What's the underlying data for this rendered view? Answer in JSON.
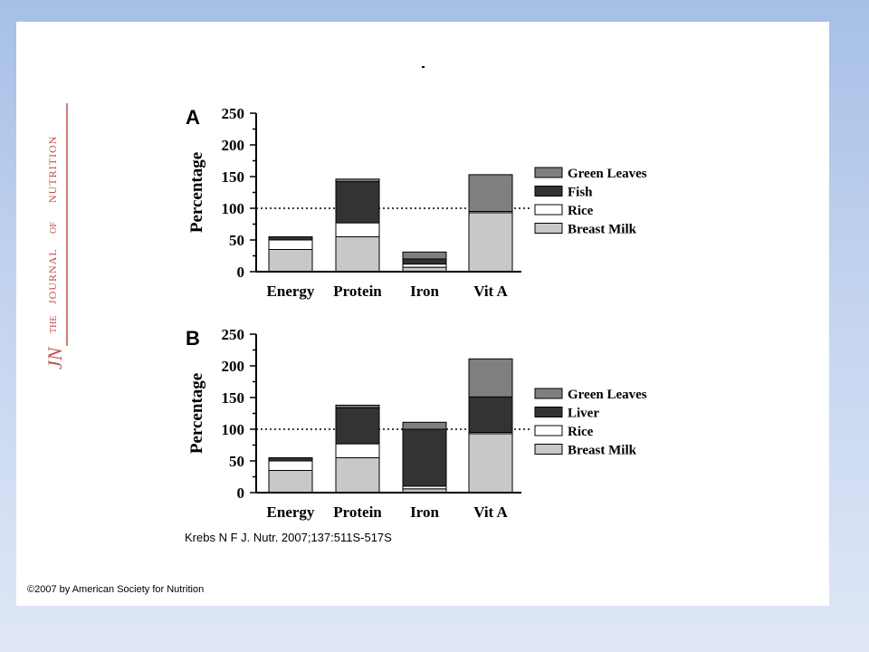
{
  "journal": {
    "abbrev": "JN",
    "the": "THE",
    "title_word1": "JOURNAL",
    "of": "OF",
    "title_word2": "NUTRITION"
  },
  "stray_mark": "-",
  "citation": "Krebs N F J. Nutr. 2007;137:511S-517S",
  "copyright": "©2007 by American Society for Nutrition",
  "colors": {
    "green_leaves": "#7f7f7f",
    "fish_liver": "#333333",
    "rice": "#ffffff",
    "breast_milk": "#c8c8c8",
    "slide_background": "#a6bfe6"
  },
  "chart_data": [
    {
      "type": "bar",
      "stacked": true,
      "panel_label": "A",
      "ylabel": "Percentage",
      "ylim": [
        0,
        250
      ],
      "yticks": [
        0,
        50,
        100,
        150,
        200,
        250
      ],
      "reference_line": 100,
      "categories": [
        "Energy",
        "Protein",
        "Iron",
        "Vit A"
      ],
      "series": [
        {
          "name": "Breast Milk",
          "color": "#c8c8c8",
          "values": [
            35,
            55,
            7,
            93
          ]
        },
        {
          "name": "Rice",
          "color": "#ffffff",
          "values": [
            15,
            22,
            5,
            2
          ]
        },
        {
          "name": "Fish",
          "color": "#333333",
          "values": [
            5,
            65,
            8,
            0
          ]
        },
        {
          "name": "Green Leaves",
          "color": "#7f7f7f",
          "values": [
            0,
            4,
            11,
            58
          ]
        }
      ],
      "legend_order": [
        "Green Leaves",
        "Fish",
        "Rice",
        "Breast Milk"
      ],
      "legend_position": "right"
    },
    {
      "type": "bar",
      "stacked": true,
      "panel_label": "B",
      "ylabel": "Percentage",
      "ylim": [
        0,
        250
      ],
      "yticks": [
        0,
        50,
        100,
        150,
        200,
        250
      ],
      "reference_line": 100,
      "categories": [
        "Energy",
        "Protein",
        "Iron",
        "Vit A"
      ],
      "series": [
        {
          "name": "Breast Milk",
          "color": "#c8c8c8",
          "values": [
            35,
            55,
            6,
            93
          ]
        },
        {
          "name": "Rice",
          "color": "#ffffff",
          "values": [
            15,
            22,
            4,
            2
          ]
        },
        {
          "name": "Liver",
          "color": "#333333",
          "values": [
            5,
            57,
            90,
            56
          ]
        },
        {
          "name": "Green Leaves",
          "color": "#7f7f7f",
          "values": [
            0,
            4,
            11,
            60
          ]
        }
      ],
      "legend_order": [
        "Green Leaves",
        "Liver",
        "Rice",
        "Breast Milk"
      ],
      "legend_position": "right"
    }
  ]
}
